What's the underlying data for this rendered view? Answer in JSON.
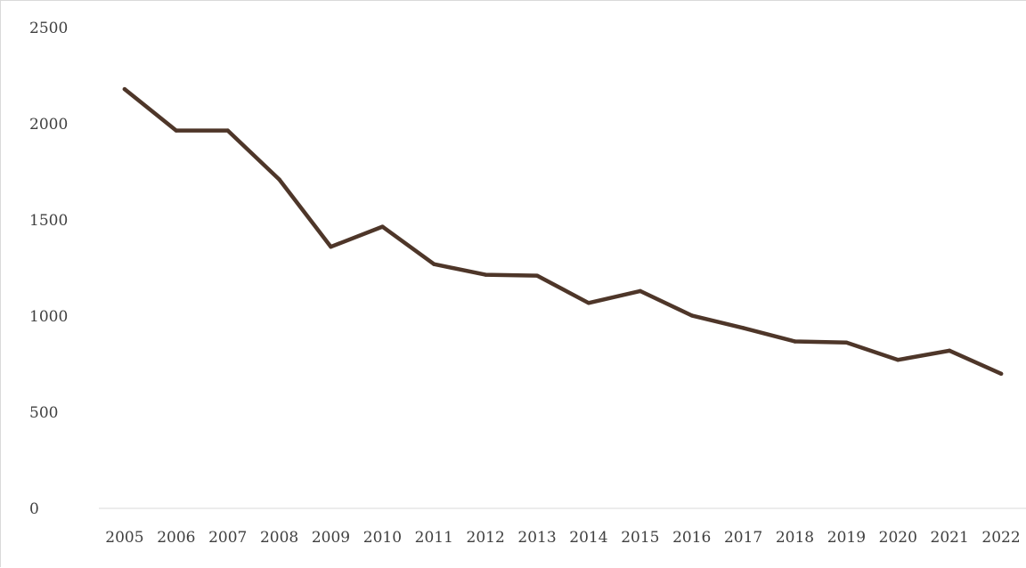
{
  "chart_data": {
    "type": "line",
    "title": "",
    "xlabel": "",
    "ylabel": "",
    "ylim": [
      0,
      2500
    ],
    "yticks": [
      0,
      500,
      1000,
      1500,
      2000,
      2500
    ],
    "ytick_labels": [
      "0",
      "500",
      "1000",
      "1500",
      "2000",
      "2500"
    ],
    "grid": false,
    "legend": "none",
    "x": [
      "2005",
      "2006",
      "2007",
      "2008",
      "2009",
      "2010",
      "2011",
      "2012",
      "2013",
      "2014",
      "2015",
      "2016",
      "2017",
      "2018",
      "2019",
      "2020",
      "2021",
      "2022"
    ],
    "series": [
      {
        "values": [
          2180,
          1965,
          1965,
          1710,
          1360,
          1465,
          1270,
          1215,
          1210,
          1068,
          1130,
          1003,
          938,
          868,
          862,
          772,
          820,
          700
        ],
        "color": "#4e3629"
      }
    ]
  }
}
